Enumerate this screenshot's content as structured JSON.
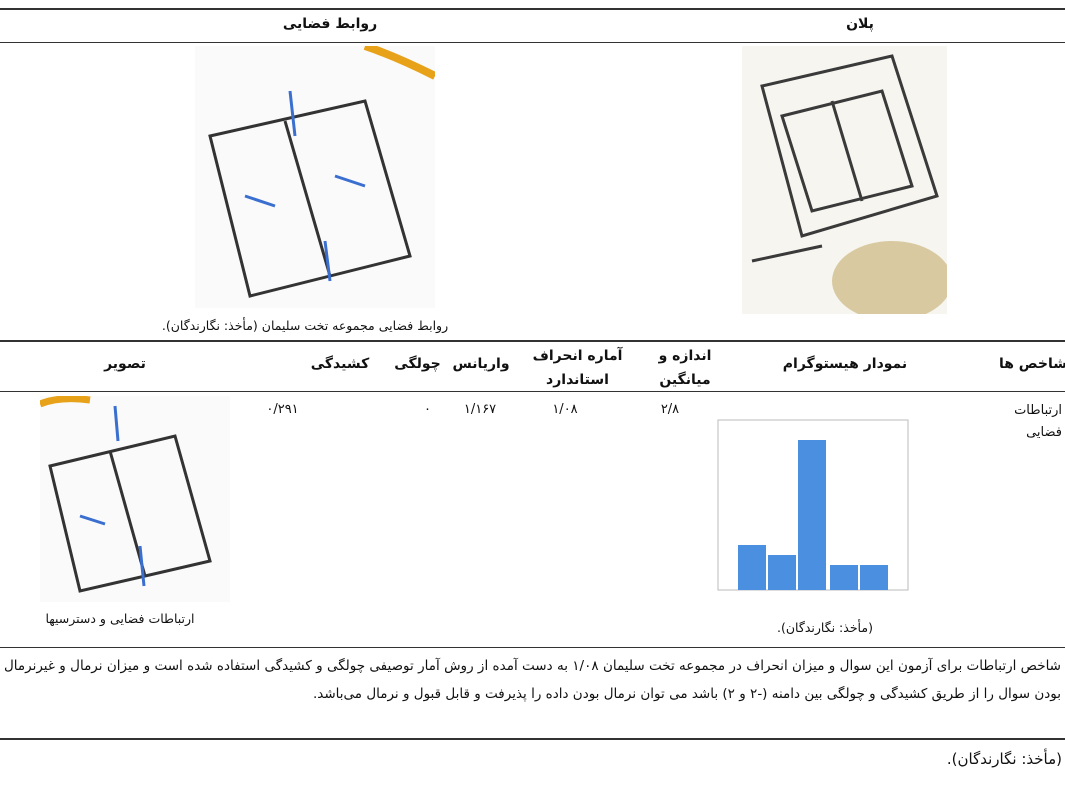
{
  "header": {
    "plan": "پلان",
    "spatial_relations": "روابط فضایی"
  },
  "figure_caption": "روابط فضایی مجموعه تخت سلیمان (مأخذ: نگارندگان).",
  "table": {
    "columns": [
      "شاخص ها",
      "نمودار هیستوگرام",
      "اندازه و میانگین",
      "آماره انحراف استاندارد",
      "واریانس",
      "چولگی",
      "کشیدگی",
      "تصویر"
    ],
    "rows": [
      [
        "ارتباطات فضایی",
        "(مأخذ: نگارندگان).",
        "۲/۸",
        "۱/۰۸",
        "۱/۱۶۷",
        "۰",
        "۰/۲۹۱",
        "ارتباطات فضایی و دسترسیها"
      ]
    ]
  },
  "paragraph": "شاخص ارتباطات برای آزمون این سوال و میزان انحراف در مجموعه تخت سلیمان ۱/۰۸ به دست آمده از روش آمار توصیفی چولگی و کشیدگی استفاده شده است و میزان نرمال و غیرنرمال بودن سوال را از طریق کشیدگی و چولگی بین دامنه (-۲ و ۲) باشد می توان نرمال بودن داده را پذیرفت و قابل قبول و نرمال می‌باشد.",
  "source": "(مأخذ: نگارندگان)."
}
